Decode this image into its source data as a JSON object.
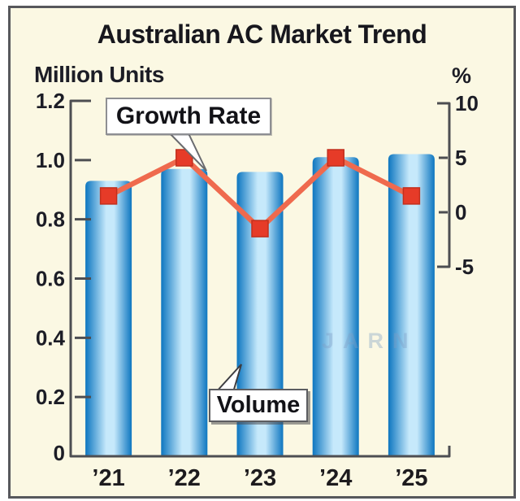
{
  "title": "Australian AC Market Trend",
  "left_axis_label": "Million Units",
  "right_axis_label": "%",
  "callouts": {
    "growth_rate": "Growth Rate",
    "volume": "Volume"
  },
  "watermark": "JARN",
  "colors": {
    "background": "#fbf8e3",
    "frame_border": "#57585c",
    "axis": "#4d4e52",
    "text": "#1c1d26",
    "bar_edge": "#0d76c0",
    "bar_light": "#c6e9fb",
    "line": "#ef6a4e",
    "marker": "#e63b28",
    "marker_edge": "#c22f1d"
  },
  "chart_data": {
    "type": "bar+line",
    "title": "Australian AC Market Trend",
    "categories": [
      "’21",
      "’22",
      "’23",
      "’24",
      "’25"
    ],
    "series": [
      {
        "name": "Volume",
        "type": "bar",
        "axis": "left",
        "values": [
          0.93,
          0.97,
          0.96,
          1.01,
          1.02
        ]
      },
      {
        "name": "Growth Rate",
        "type": "line",
        "axis": "right",
        "values": [
          1.5,
          5,
          -1.5,
          5,
          1.5
        ]
      }
    ],
    "left_axis": {
      "label": "Million Units",
      "min": 0,
      "max": 1.2,
      "tick_values": [
        0,
        0.2,
        0.4,
        0.6,
        0.8,
        1.0,
        1.2
      ],
      "tick_labels": [
        "0",
        "0.2",
        "0.4",
        "0.6",
        "0.8",
        "1.0",
        "1.2"
      ]
    },
    "right_axis": {
      "label": "%",
      "min": -5,
      "max": 10,
      "tick_values": [
        10,
        5,
        0,
        -5
      ],
      "tick_labels": [
        "10",
        "5",
        "0",
        "-5"
      ]
    },
    "grid": false,
    "legend_position": "callout-labels-inside-plot"
  }
}
